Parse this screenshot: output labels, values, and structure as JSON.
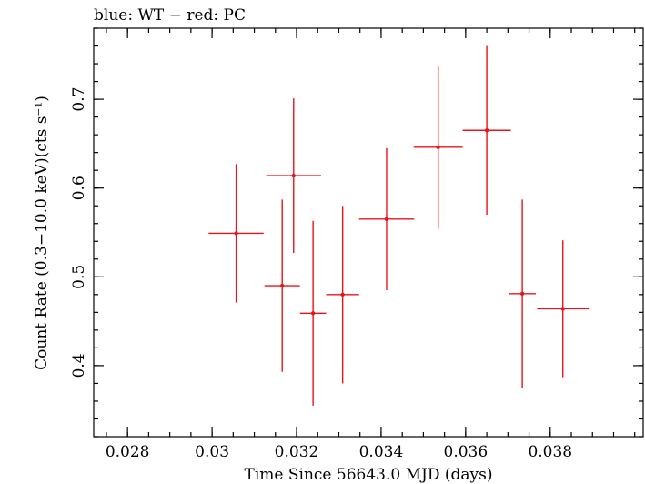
{
  "header": {
    "caption": "blue: WT − red: PC"
  },
  "chart_data": {
    "type": "scatter",
    "xlabel": "Time Since 56643.0 MJD (days)",
    "ylabel": "Count Rate (0.3−10.0 keV)(cts s⁻¹)",
    "xlim": [
      0.0272,
      0.0402
    ],
    "ylim": [
      0.32,
      0.78
    ],
    "x_ticks": [
      {
        "value": 0.028,
        "label": "0.028"
      },
      {
        "value": 0.03,
        "label": "0.03"
      },
      {
        "value": 0.032,
        "label": "0.032"
      },
      {
        "value": 0.034,
        "label": "0.034"
      },
      {
        "value": 0.036,
        "label": "0.036"
      },
      {
        "value": 0.038,
        "label": "0.038"
      }
    ],
    "y_ticks": [
      {
        "value": 0.4,
        "label": "0.4"
      },
      {
        "value": 0.5,
        "label": "0.5"
      },
      {
        "value": 0.6,
        "label": "0.6"
      },
      {
        "value": 0.7,
        "label": "0.7"
      }
    ],
    "series": [
      {
        "name": "PC",
        "color": "#e8141c",
        "points": [
          {
            "x": 0.03193,
            "xerr": 0.00065,
            "y": 0.614,
            "yerr": 0.087
          },
          {
            "x": 0.03057,
            "xerr": 0.00065,
            "y": 0.549,
            "yerr": 0.078
          },
          {
            "x": 0.03166,
            "xerr": 0.00042,
            "y": 0.49,
            "yerr": 0.097
          },
          {
            "x": 0.03239,
            "xerr": 0.00031,
            "y": 0.459,
            "yerr": 0.104
          },
          {
            "x": 0.03309,
            "xerr": 0.00039,
            "y": 0.48,
            "yerr": 0.1
          },
          {
            "x": 0.03413,
            "xerr": 0.00065,
            "y": 0.565,
            "yerr": 0.08
          },
          {
            "x": 0.03535,
            "xerr": 0.00058,
            "y": 0.646,
            "yerr": 0.092
          },
          {
            "x": 0.0365,
            "xerr": 0.00057,
            "y": 0.665,
            "yerr": 0.095
          },
          {
            "x": 0.03734,
            "xerr": 0.00032,
            "y": 0.481,
            "yerr": 0.106
          },
          {
            "x": 0.0383,
            "xerr": 0.00061,
            "y": 0.464,
            "yerr": 0.077
          }
        ]
      }
    ]
  }
}
